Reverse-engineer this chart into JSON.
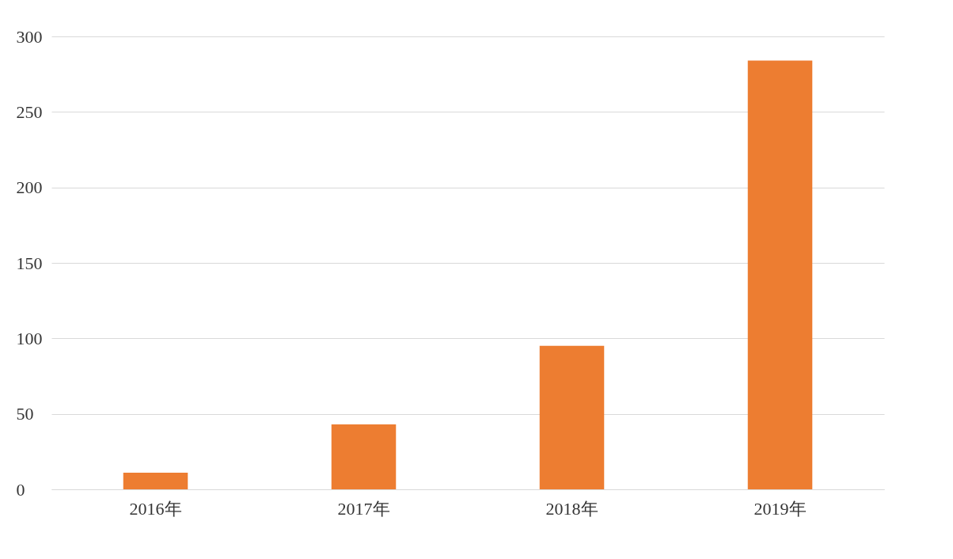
{
  "chart_data": {
    "type": "bar",
    "categories": [
      "2016年",
      "2017年",
      "2018年",
      "2019年"
    ],
    "values": [
      11,
      43,
      95,
      284
    ],
    "color": "#ed7d31",
    "ylim": [
      0,
      300
    ],
    "yticks": [
      0,
      50,
      100,
      150,
      200,
      250,
      300
    ],
    "grid": "y"
  }
}
